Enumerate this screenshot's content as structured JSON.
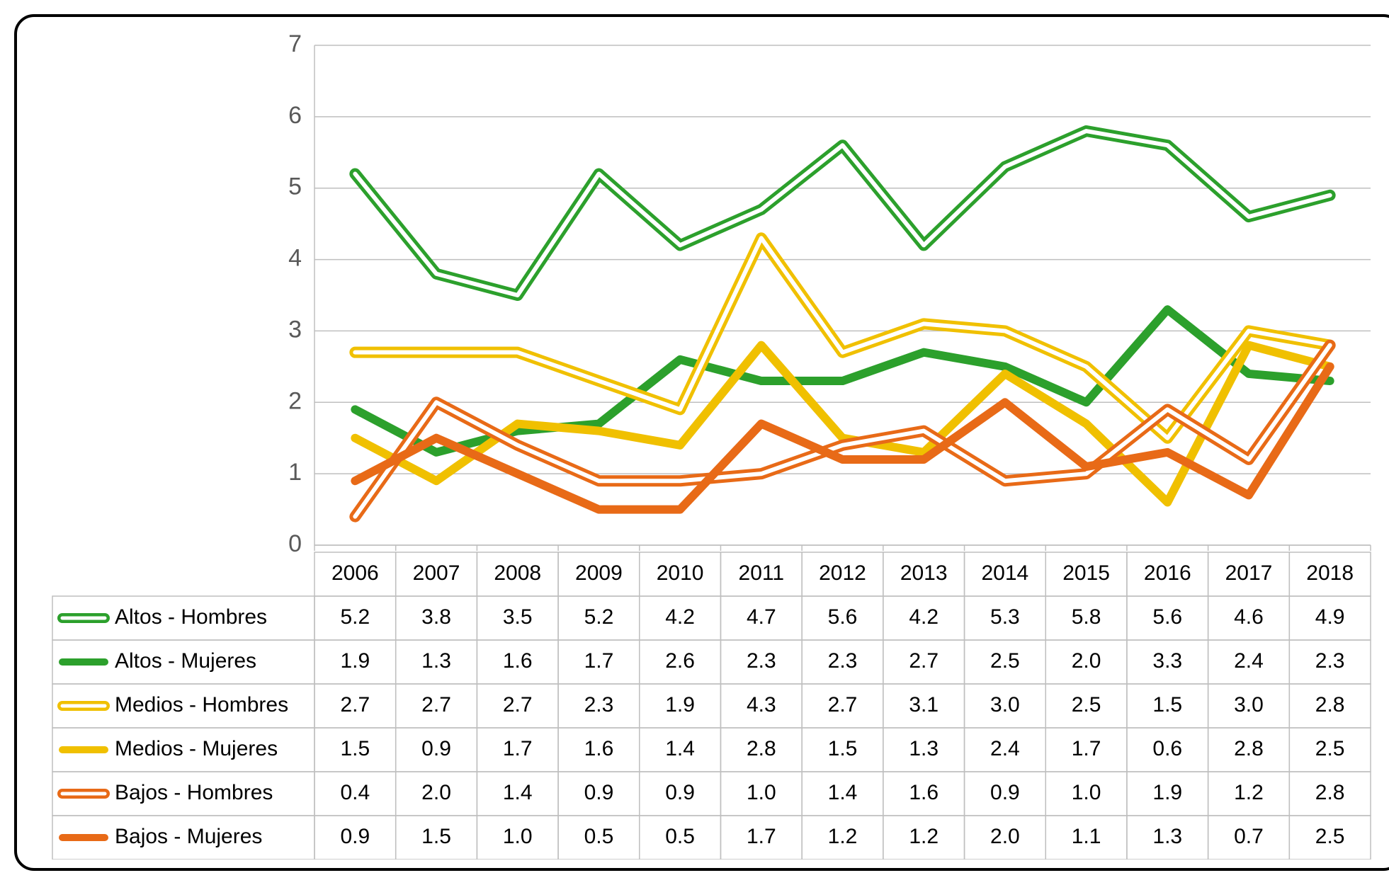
{
  "chart": {
    "type": "line",
    "background_color": "#ffffff",
    "border_color": "#000000",
    "border_radius": 28,
    "grid_color": "#bfbfbf",
    "axis_label_color": "#595959",
    "y_axis": {
      "min": 0,
      "max": 7,
      "ticks": [
        0,
        1,
        2,
        3,
        4,
        5,
        6,
        7
      ],
      "fontsize": 34
    },
    "x_categories": [
      "2006",
      "2007",
      "2008",
      "2009",
      "2010",
      "2011",
      "2012",
      "2013",
      "2014",
      "2015",
      "2016",
      "2017",
      "2018"
    ],
    "x_fontsize": 30,
    "legend_fontsize": 30,
    "cell_fontsize": 30,
    "line_width": 10,
    "series": [
      {
        "name": "Altos - Hombres",
        "color": "#2ca02c",
        "style": "double",
        "values": [
          5.2,
          3.8,
          3.5,
          5.2,
          4.2,
          4.7,
          5.6,
          4.2,
          5.3,
          5.8,
          5.6,
          4.6,
          4.9
        ]
      },
      {
        "name": "Altos - Mujeres",
        "color": "#2ca02c",
        "style": "solid",
        "values": [
          1.9,
          1.3,
          1.6,
          1.7,
          2.6,
          2.3,
          2.3,
          2.7,
          2.5,
          2.0,
          3.3,
          2.4,
          2.3
        ]
      },
      {
        "name": "Medios - Hombres",
        "color": "#f0c000",
        "style": "double",
        "values": [
          2.7,
          2.7,
          2.7,
          2.3,
          1.9,
          4.3,
          2.7,
          3.1,
          3.0,
          2.5,
          1.5,
          3.0,
          2.8
        ]
      },
      {
        "name": "Medios - Mujeres",
        "color": "#f0c000",
        "style": "solid",
        "values": [
          1.5,
          0.9,
          1.7,
          1.6,
          1.4,
          2.8,
          1.5,
          1.3,
          2.4,
          1.7,
          0.6,
          2.8,
          2.5
        ]
      },
      {
        "name": "Bajos - Hombres",
        "color": "#e86a17",
        "style": "double",
        "values": [
          0.4,
          2.0,
          1.4,
          0.9,
          0.9,
          1.0,
          1.4,
          1.6,
          0.9,
          1.0,
          1.9,
          1.2,
          2.8
        ]
      },
      {
        "name": "Bajos - Mujeres",
        "color": "#e86a17",
        "style": "solid",
        "values": [
          0.9,
          1.5,
          1.0,
          0.5,
          0.5,
          1.7,
          1.2,
          1.2,
          2.0,
          1.1,
          1.3,
          0.7,
          2.5
        ]
      }
    ]
  }
}
